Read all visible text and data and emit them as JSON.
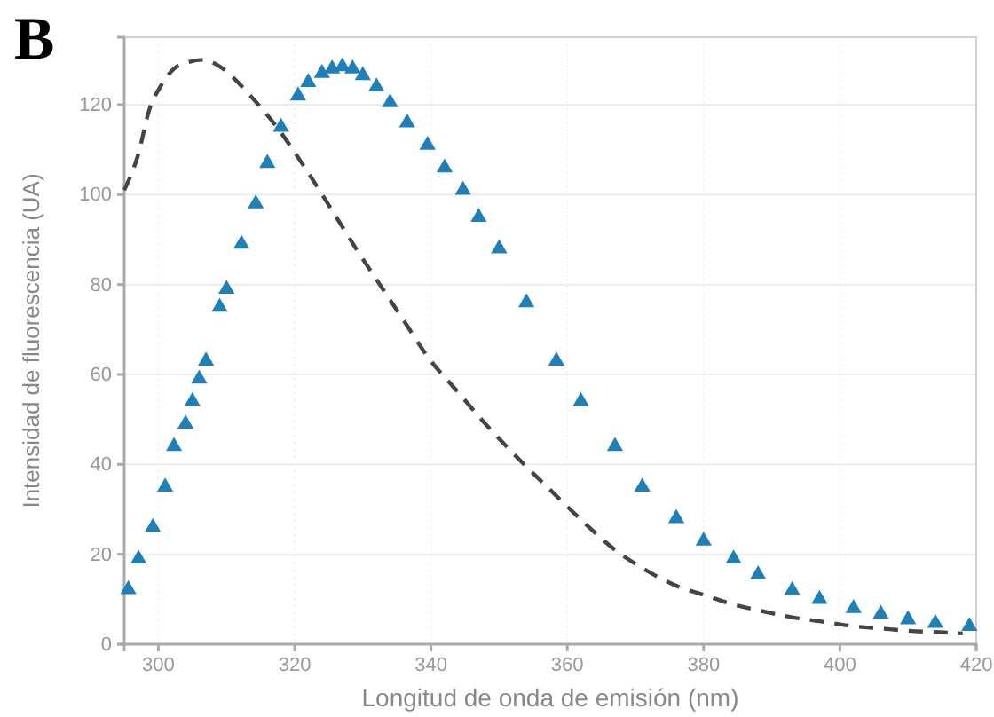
{
  "chart_data": {
    "type": "scatter",
    "title": "B",
    "xlabel": "Longitud de onda de emisión (nm)",
    "ylabel": "Intensidad de fluorescencia (UA)",
    "xlim": [
      295,
      420
    ],
    "xticks": [
      300,
      320,
      340,
      360,
      380,
      400,
      420
    ],
    "ylim": [
      0,
      135
    ],
    "yticks": [
      0,
      20,
      40,
      60,
      80,
      100,
      120
    ],
    "grid": true,
    "series": [
      {
        "marker": "triangle",
        "color": "#1f7fb8",
        "x": [
          295.6,
          297.1,
          299.2,
          301,
          302.3,
          304,
          305,
          306,
          307,
          309,
          310,
          312.2,
          314.3,
          316,
          318,
          320.5,
          322,
          324,
          325.5,
          327,
          328.5,
          330,
          332,
          334,
          336.5,
          339.5,
          342,
          344.7,
          347,
          350,
          354,
          358.4,
          362,
          367,
          371,
          376,
          380,
          384.4,
          388,
          393,
          397,
          402,
          406,
          410,
          414,
          419
        ],
        "values": [
          12.2,
          19,
          26,
          35,
          44,
          49,
          54,
          59,
          63,
          75,
          79,
          89,
          98,
          107,
          115,
          122,
          125,
          127,
          128,
          128.5,
          128,
          126.5,
          124,
          120.5,
          116,
          111,
          106,
          101,
          95,
          88,
          76,
          63,
          54,
          44,
          35,
          28,
          23,
          19,
          15.5,
          12,
          10,
          8,
          6.7,
          5.5,
          4.7,
          4
        ]
      },
      {
        "type": "line",
        "marker": "none",
        "line_style": "dashed",
        "color": "#444444",
        "x": [
          295,
          297,
          298.7,
          300.5,
          302.3,
          304.5,
          306.5,
          309,
          311,
          313.5,
          317.4,
          321.5,
          325.7,
          329,
          332.5,
          336,
          339.5,
          344,
          348,
          353,
          358.4,
          362.5,
          367,
          371.5,
          376,
          380,
          384,
          388.5,
          393,
          397.5,
          402,
          406,
          410,
          414,
          418
        ],
        "values": [
          101,
          108.7,
          119,
          124.5,
          128,
          129.5,
          130,
          128.5,
          126,
          122,
          115,
          106,
          96,
          88,
          80,
          72,
          64,
          56,
          49,
          41,
          33,
          27,
          21,
          16.5,
          13,
          11,
          9,
          7.4,
          6,
          5,
          4,
          3.5,
          3,
          2.7,
          2.4
        ]
      }
    ]
  }
}
